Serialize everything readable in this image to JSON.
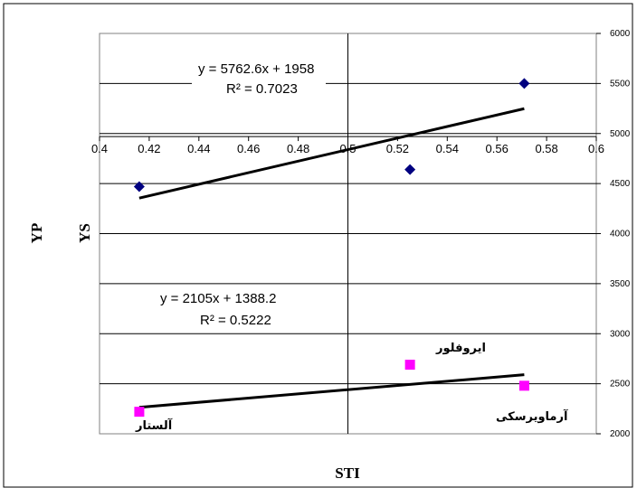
{
  "chart_data": {
    "type": "scatter",
    "xlabel": "STI",
    "ylabel_right_series": "YP",
    "ylabel_left_series": "YS",
    "x_axis": {
      "min": 0.4,
      "max": 0.6,
      "ticks": [
        "0.4",
        "0.42",
        "0.44",
        "0.46",
        "0.48",
        "0.5",
        "0.52",
        "0.54",
        "0.56",
        "0.58",
        "0.6"
      ]
    },
    "y_axis": {
      "min": 2000,
      "max": 6000,
      "ticks": [
        "2000",
        "2500",
        "3000",
        "3500",
        "4000",
        "4500",
        "5000",
        "5500",
        "6000"
      ]
    },
    "grid": true,
    "series": [
      {
        "marker": "diamond",
        "color": "#000080",
        "points": [
          {
            "x": 0.416,
            "y": 4470
          },
          {
            "x": 0.525,
            "y": 4640
          },
          {
            "x": 0.571,
            "y": 5500
          }
        ],
        "trendline": {
          "slope": 5762.6,
          "intercept": 1958,
          "x_range": [
            0.416,
            0.571
          ]
        },
        "equation": "y = 5762.6x + 1958",
        "r2": "R² = 0.7023"
      },
      {
        "marker": "square",
        "color": "#ff00ff",
        "points": [
          {
            "x": 0.416,
            "y": 2220,
            "label": "آلستار"
          },
          {
            "x": 0.525,
            "y": 2690,
            "label": "ایروفلور"
          },
          {
            "x": 0.571,
            "y": 2480,
            "label": "آرماویرسکی"
          }
        ],
        "trendline": {
          "slope": 2105,
          "intercept": 1388.2,
          "x_range": [
            0.416,
            0.571
          ]
        },
        "equation": "y = 2105x + 1388.2",
        "r2": "R² = 0.5222"
      }
    ]
  }
}
